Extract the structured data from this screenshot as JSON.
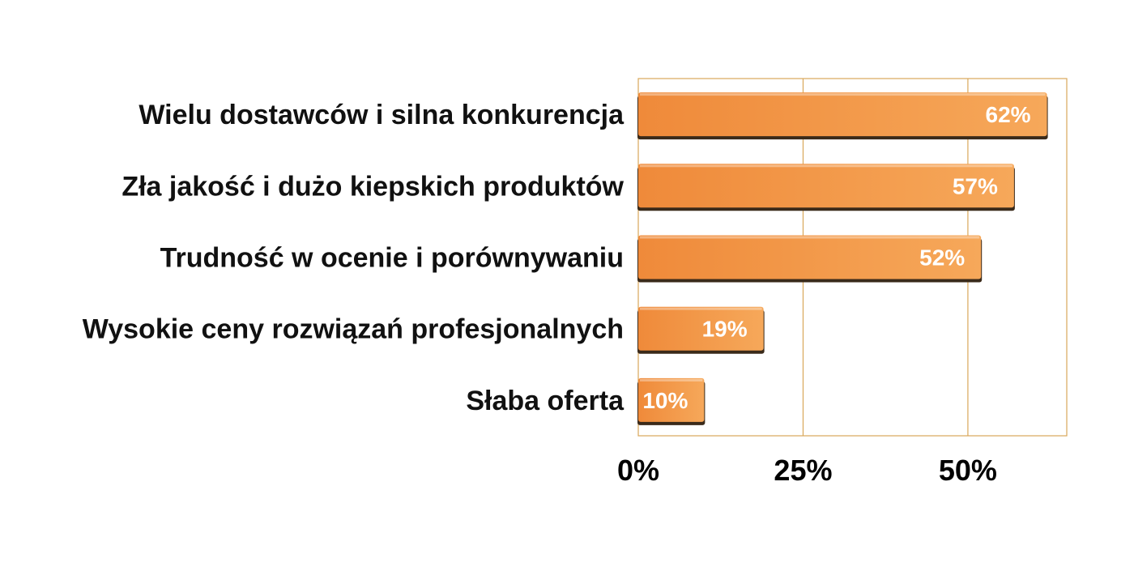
{
  "chart_data": {
    "type": "bar",
    "orientation": "horizontal",
    "categories": [
      "Wielu dostawców i silna konkurencja",
      "Zła jakość i dużo kiepskich produktów",
      "Trudność w ocenie i porównywaniu",
      "Wysokie ceny rozwiązań profesjonalnych",
      "Słaba oferta"
    ],
    "values": [
      62,
      57,
      52,
      19,
      10
    ],
    "value_labels": [
      "62%",
      "57%",
      "52%",
      "19%",
      "10%"
    ],
    "xlim": [
      0,
      65
    ],
    "x_ticks": [
      0,
      25,
      50
    ],
    "x_tick_labels": [
      "0%",
      "25%",
      "50%"
    ],
    "grid": "vertical",
    "colors": {
      "bar_left": "#ef8a3a",
      "bar_right": "#f6a85a",
      "bar_shadow": "#3a2a1a",
      "frame": "#d9a75a",
      "grid": "#d9a75a"
    }
  }
}
